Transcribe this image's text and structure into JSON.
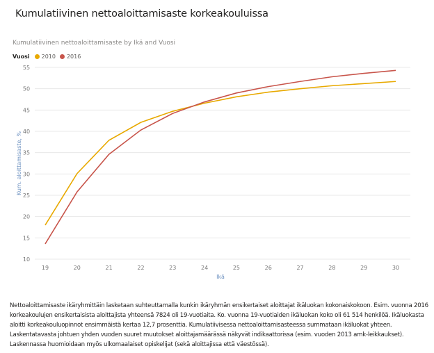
{
  "page_title": "Kumulatiivinen nettoaloittamisaste korkeakouluissa",
  "chart_data": {
    "type": "line",
    "title": "Kumulatiivinen nettoaloittamisaste by Ikä and Vuosi",
    "legend_title": "Vuosi",
    "legend_position": "top-left",
    "xlabel": "Ikä",
    "ylabel": "Kum. aloittamisaste, %",
    "x": [
      19,
      20,
      21,
      22,
      23,
      24,
      25,
      26,
      27,
      28,
      29,
      30
    ],
    "ylim": [
      10,
      55
    ],
    "yticks": [
      10,
      15,
      20,
      25,
      30,
      35,
      40,
      45,
      50,
      55
    ],
    "grid": true,
    "series": [
      {
        "name": "2010",
        "color": "#e8a900",
        "values": [
          18.0,
          30.1,
          37.9,
          42.1,
          44.7,
          46.6,
          48.1,
          49.2,
          50.0,
          50.7,
          51.2,
          51.7
        ]
      },
      {
        "name": "2016",
        "color": "#c8554b",
        "values": [
          13.6,
          25.8,
          34.6,
          40.3,
          44.2,
          46.9,
          49.0,
          50.5,
          51.7,
          52.8,
          53.6,
          54.3
        ]
      }
    ]
  },
  "description": [
    "Nettoaloittamisaste ikäryhmittäin lasketaan suhteuttamalla kunkin ikäryhmän ensikertaiset aloittajat ikäluokan kokonaiskokoon. Esim. vuonna 2016",
    "korkeakoulujen ensikertaisista aloittajista yhteensä 7824 oli 19-vuotiaita. Ko. vuonna 19-vuotiaiden ikäluokan koko oli 61 514 henkilöä. Ikäluokasta",
    "aloitti korkeakouluopinnot ensimmäistä kertaa 12,7 prosenttia. Kumulatiivisessa nettoaloittamisasteessa summataan ikäluokat yhteen.",
    "Laskentatavasta johtuen yhden vuoden suuret muutokset aloittajamäärässä näkyvät indikaattorissa (esim. vuoden 2013 amk-leikkaukset).",
    "Laskennassa huomioidaan myös ulkomaalaiset opiskelijat (sekä aloittajissa että väestössä)."
  ]
}
